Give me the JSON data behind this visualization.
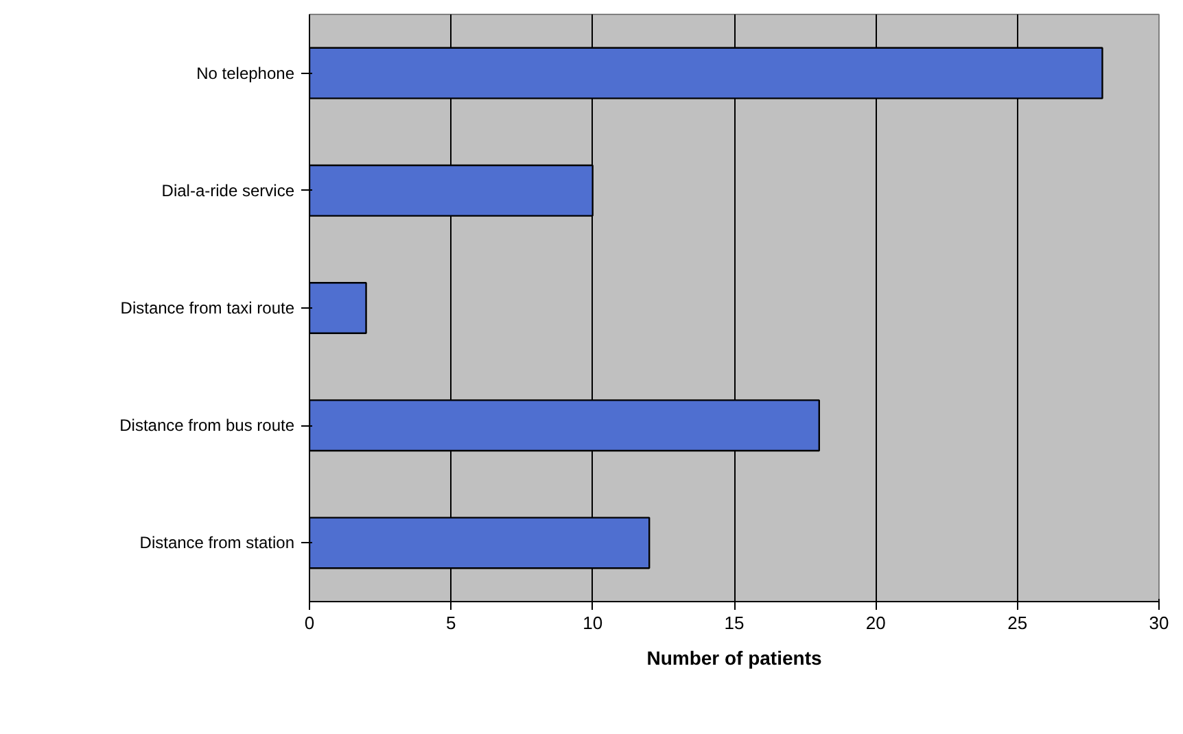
{
  "chart_data": {
    "type": "bar",
    "orientation": "horizontal",
    "xlabel": "Number of patients",
    "categories": [
      "No telephone",
      "Dial-a-ride service",
      "Distance from taxi route",
      "Distance from bus route",
      "Distance from station"
    ],
    "values": [
      28,
      10,
      2,
      18,
      12
    ],
    "color": "#4f6fd0",
    "xlim": [
      0,
      30
    ],
    "xticks": [
      0,
      5,
      10,
      15,
      20,
      25,
      30
    ],
    "grid": "x"
  }
}
